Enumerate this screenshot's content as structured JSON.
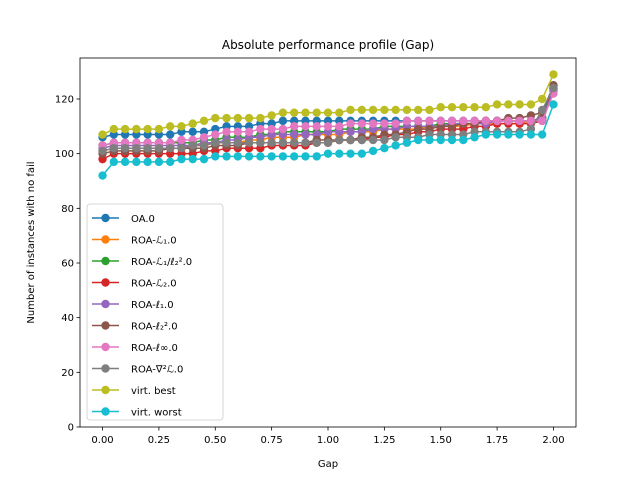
{
  "chart_data": {
    "type": "line",
    "title": "Absolute performance profile (Gap)",
    "xlabel": "Gap",
    "ylabel": "Number of instances with no fail",
    "xlim": [
      -0.1,
      2.1
    ],
    "ylim": [
      0,
      135
    ],
    "xticks": [
      0.0,
      0.25,
      0.5,
      0.75,
      1.0,
      1.25,
      1.5,
      1.75,
      2.0
    ],
    "xtick_labels": [
      "0.00",
      "0.25",
      "0.50",
      "0.75",
      "1.00",
      "1.25",
      "1.50",
      "1.75",
      "2.00"
    ],
    "yticks": [
      0,
      20,
      40,
      60,
      80,
      100,
      120
    ],
    "ytick_labels": [
      "0",
      "20",
      "40",
      "60",
      "80",
      "100",
      "120"
    ],
    "grid": false,
    "legend_location": "lower-left",
    "x": [
      0.0,
      0.05,
      0.1,
      0.15,
      0.2,
      0.25,
      0.3,
      0.35,
      0.4,
      0.45,
      0.5,
      0.55,
      0.6,
      0.65,
      0.7,
      0.75,
      0.8,
      0.85,
      0.9,
      0.95,
      1.0,
      1.05,
      1.1,
      1.15,
      1.2,
      1.25,
      1.3,
      1.35,
      1.4,
      1.45,
      1.5,
      1.55,
      1.6,
      1.65,
      1.7,
      1.75,
      1.8,
      1.85,
      1.9,
      1.95,
      2.0
    ],
    "series": [
      {
        "name": "OA.0",
        "color": "#1f77b4",
        "values": [
          106,
          107,
          107,
          107,
          107,
          107,
          107,
          108,
          108,
          108,
          109,
          110,
          110,
          110,
          111,
          111,
          112,
          112,
          112,
          112,
          112,
          112,
          112,
          112,
          112,
          112,
          112,
          112,
          112,
          112,
          112,
          112,
          112,
          112,
          112,
          112,
          112,
          112,
          112,
          113,
          125
        ]
      },
      {
        "name": "ROA-ℒ₁.0",
        "color": "#ff7f0e",
        "values": [
          101,
          102,
          102,
          102,
          102,
          102,
          102,
          102,
          103,
          103,
          104,
          104,
          104,
          105,
          105,
          106,
          106,
          106,
          107,
          107,
          107,
          107,
          108,
          108,
          108,
          109,
          109,
          109,
          109,
          110,
          110,
          110,
          110,
          111,
          111,
          111,
          111,
          111,
          112,
          113,
          123
        ]
      },
      {
        "name": "ROA-ℒ₁/ℓ₂².0",
        "color": "#2ca02c",
        "values": [
          103,
          104,
          104,
          104,
          104,
          104,
          104,
          104,
          104,
          105,
          105,
          106,
          106,
          106,
          107,
          107,
          108,
          108,
          108,
          108,
          108,
          109,
          109,
          109,
          109,
          110,
          110,
          110,
          110,
          110,
          111,
          111,
          111,
          111,
          112,
          112,
          112,
          112,
          112,
          113,
          124
        ]
      },
      {
        "name": "ROA-ℒ₂.0",
        "color": "#d62728",
        "values": [
          98,
          100,
          100,
          100,
          100,
          100,
          100,
          100,
          100,
          101,
          101,
          102,
          102,
          102,
          102,
          103,
          103,
          103,
          103,
          104,
          104,
          105,
          105,
          105,
          106,
          106,
          107,
          107,
          108,
          108,
          109,
          109,
          109,
          110,
          110,
          111,
          111,
          111,
          111,
          112,
          124
        ]
      },
      {
        "name": "ROA-ℓ₁.0",
        "color": "#9467bd",
        "values": [
          102,
          103,
          103,
          103,
          103,
          103,
          103,
          103,
          103,
          104,
          104,
          105,
          105,
          106,
          106,
          107,
          107,
          107,
          107,
          107,
          108,
          108,
          108,
          108,
          109,
          109,
          109,
          110,
          110,
          110,
          110,
          111,
          111,
          111,
          111,
          112,
          112,
          112,
          112,
          113,
          123
        ]
      },
      {
        "name": "ROA-ℓ₂².0",
        "color": "#8c564b",
        "values": [
          100,
          101,
          101,
          101,
          101,
          101,
          102,
          102,
          102,
          102,
          103,
          103,
          103,
          104,
          104,
          104,
          104,
          104,
          104,
          105,
          105,
          105,
          105,
          106,
          106,
          107,
          107,
          108,
          109,
          109,
          110,
          110,
          111,
          111,
          112,
          112,
          113,
          113,
          114,
          115,
          125
        ]
      },
      {
        "name": "ROA-ℓ∞.0",
        "color": "#e377c2",
        "values": [
          103,
          104,
          104,
          104,
          104,
          104,
          104,
          105,
          105,
          106,
          107,
          108,
          108,
          108,
          109,
          109,
          109,
          110,
          110,
          110,
          110,
          110,
          111,
          111,
          111,
          111,
          111,
          112,
          112,
          112,
          112,
          112,
          112,
          112,
          112,
          112,
          112,
          112,
          112,
          112,
          122
        ]
      },
      {
        "name": "ROA-∇²ℒ.0",
        "color": "#7f7f7f",
        "values": [
          101,
          102,
          102,
          102,
          102,
          102,
          102,
          102,
          103,
          103,
          104,
          104,
          104,
          104,
          104,
          104,
          104,
          104,
          104,
          104,
          104,
          105,
          105,
          105,
          105,
          105,
          106,
          106,
          106,
          107,
          107,
          107,
          107,
          108,
          108,
          108,
          108,
          108,
          109,
          116,
          124
        ]
      },
      {
        "name": "virt. best",
        "color": "#bcbd22",
        "values": [
          107,
          109,
          109,
          109,
          109,
          109,
          110,
          110,
          111,
          112,
          113,
          113,
          113,
          113,
          113,
          114,
          115,
          115,
          115,
          115,
          115,
          115,
          116,
          116,
          116,
          116,
          116,
          116,
          116,
          116,
          117,
          117,
          117,
          117,
          117,
          118,
          118,
          118,
          118,
          120,
          129
        ]
      },
      {
        "name": "virt. worst",
        "color": "#17becf",
        "values": [
          92,
          97,
          97,
          97,
          97,
          97,
          97,
          98,
          98,
          98,
          99,
          99,
          99,
          99,
          99,
          99,
          99,
          99,
          99,
          99,
          100,
          100,
          100,
          100,
          101,
          102,
          103,
          104,
          105,
          105,
          105,
          105,
          105,
          106,
          107,
          107,
          107,
          107,
          107,
          107,
          118
        ]
      }
    ]
  }
}
